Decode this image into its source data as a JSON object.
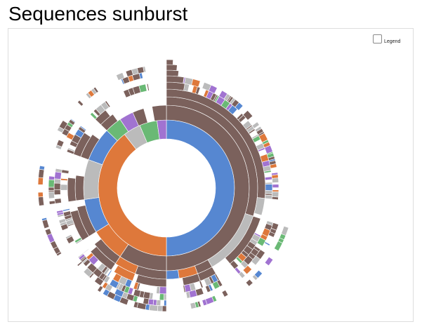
{
  "page": {
    "title": "Sequences sunburst"
  },
  "controls": {
    "legend_label": "Legend",
    "legend_checked": false
  },
  "colors": {
    "home": "#5687d1",
    "product": "#7b615c",
    "search": "#de783b",
    "account": "#6ab975",
    "other": "#a173d1",
    "end": "#bbbbbb"
  }
}
